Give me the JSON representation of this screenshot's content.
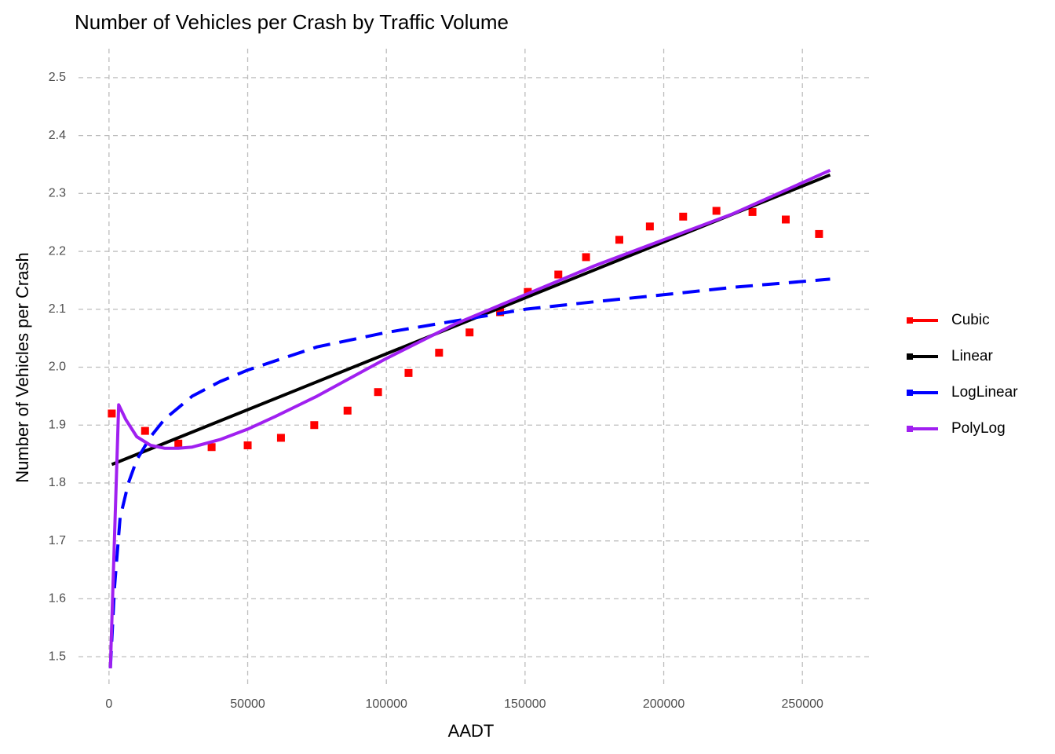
{
  "chart_data": {
    "type": "line",
    "title": "Number of Vehicles per Crash by Traffic Volume",
    "x_label": "AADT",
    "y_label": "Number of Vehicles per Crash",
    "xlim": [
      -11000,
      274000
    ],
    "ylim": [
      1.45,
      2.55
    ],
    "xticks": [
      0,
      50000,
      100000,
      150000,
      200000,
      250000
    ],
    "yticks": [
      1.5,
      1.6,
      1.7,
      1.8,
      1.9,
      {
        "value": 2,
        "label": "2.0"
      },
      2.1,
      2.2,
      2.3,
      2.4,
      2.5
    ],
    "grid": true,
    "legend": "right",
    "series": [
      {
        "name": "Cubic",
        "color": "#ff0000",
        "style": "dotted",
        "x": [
          1000,
          13000,
          25000,
          37000,
          50000,
          62000,
          74000,
          86000,
          97000,
          108000,
          119000,
          130000,
          141000,
          151000,
          162000,
          172000,
          184000,
          195000,
          207000,
          219000,
          232000,
          244000,
          256000
        ],
        "values": [
          1.92,
          1.89,
          1.868,
          1.862,
          1.865,
          1.878,
          1.9,
          1.925,
          1.957,
          1.99,
          2.025,
          2.06,
          2.095,
          2.13,
          2.16,
          2.19,
          2.22,
          2.243,
          2.26,
          2.27,
          2.268,
          2.255,
          2.23
        ]
      },
      {
        "name": "Linear",
        "color": "#000000",
        "style": "solid",
        "x": [
          1000,
          260000
        ],
        "values": [
          1.832,
          2.332
        ]
      },
      {
        "name": "LogLinear",
        "color": "#0000ff",
        "style": "dashed",
        "x": [
          500,
          2000,
          4000,
          7000,
          10000,
          15000,
          20000,
          30000,
          40000,
          50000,
          75000,
          100000,
          125000,
          150000,
          175000,
          200000,
          225000,
          260000
        ],
        "values": [
          1.48,
          1.62,
          1.74,
          1.8,
          1.84,
          1.88,
          1.91,
          1.95,
          1.975,
          1.995,
          2.035,
          2.06,
          2.08,
          2.1,
          2.113,
          2.125,
          2.138,
          2.152
        ]
      },
      {
        "name": "PolyLog",
        "color": "#a020f0",
        "style": "solid",
        "x": [
          500,
          3500,
          6000,
          10000,
          15000,
          20000,
          25000,
          30000,
          40000,
          50000,
          60000,
          75000,
          100000,
          125000,
          150000,
          175000,
          200000,
          225000,
          260000
        ],
        "values": [
          1.48,
          1.935,
          1.91,
          1.88,
          1.865,
          1.86,
          1.86,
          1.862,
          1.875,
          1.893,
          1.915,
          1.95,
          2.015,
          2.075,
          2.125,
          2.175,
          2.22,
          2.265,
          2.34
        ]
      }
    ]
  }
}
